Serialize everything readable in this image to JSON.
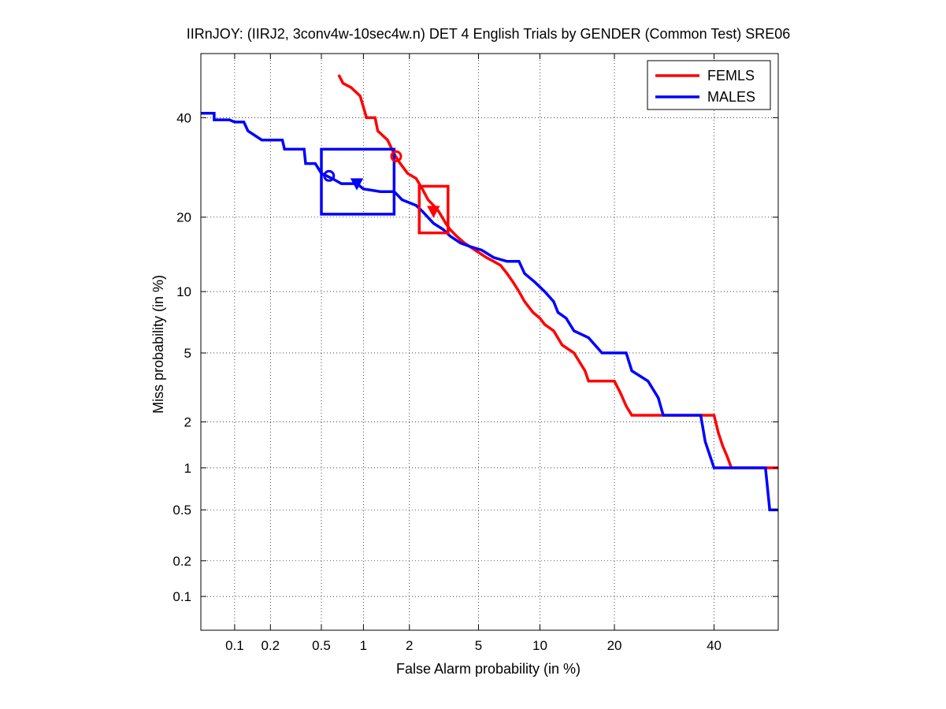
{
  "chart_data": {
    "type": "line",
    "title": "IIRnJOY: (IIRJ2, 3conv4w-10sec4w.n) DET 4 English Trials by GENDER (Common Test) SRE06",
    "xlabel": "False Alarm probability (in %)",
    "ylabel": "Miss probability (in %)",
    "x_scale": "normal-deviate",
    "y_scale": "normal-deviate",
    "xlim": [
      0.05,
      55
    ],
    "ylim": [
      0.05,
      55
    ],
    "x_ticks": [
      0.1,
      0.2,
      0.5,
      1,
      2,
      5,
      10,
      20,
      40
    ],
    "y_ticks": [
      0.1,
      0.2,
      0.5,
      1,
      2,
      5,
      10,
      20,
      40
    ],
    "x_tick_labels": [
      "0.1",
      "0.2",
      "0.5",
      "1",
      "2",
      "5",
      "10",
      "20",
      "40"
    ],
    "y_tick_labels": [
      "0.1",
      "0.2",
      "0.5",
      "1",
      "2",
      "5",
      "10",
      "20",
      "40"
    ],
    "grid": true,
    "legend_position": "top-right",
    "series": [
      {
        "name": "FEMLS",
        "color": "#ff0000",
        "points": [
          [
            0.67,
            50
          ],
          [
            0.72,
            48
          ],
          [
            0.82,
            47
          ],
          [
            0.95,
            45
          ],
          [
            1.05,
            40
          ],
          [
            1.2,
            40
          ],
          [
            1.25,
            37
          ],
          [
            1.45,
            35
          ],
          [
            1.55,
            33
          ],
          [
            1.6,
            32
          ],
          [
            1.75,
            30
          ],
          [
            1.95,
            28
          ],
          [
            2.2,
            27
          ],
          [
            2.4,
            25
          ],
          [
            2.6,
            23
          ],
          [
            2.8,
            22
          ],
          [
            3.0,
            21
          ],
          [
            3.3,
            19
          ],
          [
            3.5,
            18
          ],
          [
            3.8,
            17
          ],
          [
            4.2,
            16
          ],
          [
            4.8,
            15
          ],
          [
            5.5,
            14
          ],
          [
            6.0,
            13.5
          ],
          [
            6.5,
            13
          ],
          [
            7.0,
            12
          ],
          [
            7.5,
            11
          ],
          [
            8.0,
            10
          ],
          [
            8.5,
            9
          ],
          [
            9.3,
            8
          ],
          [
            10,
            7.5
          ],
          [
            10.5,
            7
          ],
          [
            11.5,
            6.5
          ],
          [
            12.5,
            5.5
          ],
          [
            14,
            5.0
          ],
          [
            15.5,
            4.0
          ],
          [
            16,
            3.5
          ],
          [
            20,
            3.5
          ],
          [
            21,
            3.0
          ],
          [
            22,
            2.5
          ],
          [
            23,
            2.2
          ],
          [
            40,
            2.2
          ],
          [
            41,
            1.7
          ],
          [
            42,
            1.4
          ],
          [
            43,
            1.2
          ],
          [
            44,
            1.0
          ],
          [
            55,
            1.0
          ]
        ]
      },
      {
        "name": "MALES",
        "color": "#0000ff",
        "points": [
          [
            0.05,
            41
          ],
          [
            0.066,
            41
          ],
          [
            0.066,
            39.5
          ],
          [
            0.09,
            39.5
          ],
          [
            0.1,
            39
          ],
          [
            0.12,
            39
          ],
          [
            0.13,
            37
          ],
          [
            0.17,
            35
          ],
          [
            0.25,
            35
          ],
          [
            0.26,
            33
          ],
          [
            0.37,
            33
          ],
          [
            0.38,
            30
          ],
          [
            0.45,
            30
          ],
          [
            0.5,
            28
          ],
          [
            0.6,
            27
          ],
          [
            0.7,
            26
          ],
          [
            0.9,
            26
          ],
          [
            1.0,
            25
          ],
          [
            1.3,
            24.5
          ],
          [
            1.6,
            24.5
          ],
          [
            1.8,
            23
          ],
          [
            2.2,
            22
          ],
          [
            2.4,
            21
          ],
          [
            2.8,
            19
          ],
          [
            3.2,
            18
          ],
          [
            3.5,
            17
          ],
          [
            4.0,
            16
          ],
          [
            4.5,
            15.5
          ],
          [
            5.2,
            15
          ],
          [
            6.0,
            14
          ],
          [
            7.0,
            13.5
          ],
          [
            8.0,
            13.5
          ],
          [
            8.5,
            12
          ],
          [
            9.5,
            11
          ],
          [
            10.5,
            10
          ],
          [
            11.5,
            9
          ],
          [
            12.0,
            8
          ],
          [
            13.0,
            7.5
          ],
          [
            14.0,
            6.5
          ],
          [
            16.0,
            6.0
          ],
          [
            18.0,
            5.0
          ],
          [
            22.0,
            5.0
          ],
          [
            23.0,
            4.0
          ],
          [
            26.0,
            3.5
          ],
          [
            28.0,
            2.8
          ],
          [
            29.0,
            2.2
          ],
          [
            37.0,
            2.2
          ],
          [
            38.0,
            1.5
          ],
          [
            40.0,
            1.0
          ],
          [
            52.0,
            1.0
          ],
          [
            53.0,
            0.5
          ],
          [
            55.0,
            0.5
          ]
        ]
      }
    ],
    "markers": [
      {
        "series": "FEMLS",
        "shape": "circle",
        "x": 1.65,
        "y": 31.5
      },
      {
        "series": "FEMLS",
        "shape": "triangle-down",
        "x": 2.8,
        "y": 21
      },
      {
        "series": "MALES",
        "shape": "circle",
        "x": 0.57,
        "y": 27.5
      },
      {
        "series": "MALES",
        "shape": "triangle-down",
        "x": 0.9,
        "y": 26
      }
    ],
    "confidence_boxes": [
      {
        "series": "FEMLS",
        "x": [
          2.3,
          3.4
        ],
        "y": [
          17.5,
          25.5
        ]
      },
      {
        "series": "MALES",
        "x": [
          0.5,
          1.6
        ],
        "y": [
          20.5,
          33
        ]
      }
    ]
  }
}
